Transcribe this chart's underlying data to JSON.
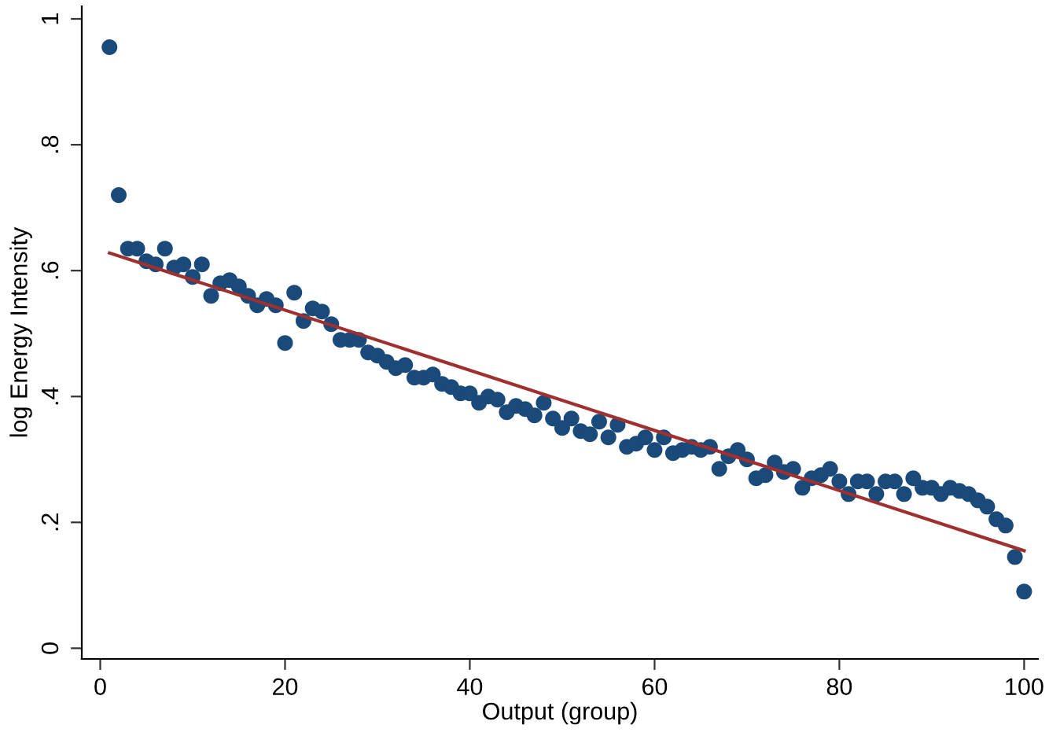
{
  "chart_data": {
    "type": "scatter",
    "xlabel": "Output (group)",
    "ylabel": "log Energy Intensity",
    "xlim": [
      -2,
      101.5
    ],
    "ylim": [
      -0.017,
      1.02
    ],
    "xticks": [
      0,
      20,
      40,
      60,
      80,
      100
    ],
    "yticks": [
      0,
      {
        "value": 0.2,
        "label": ".2"
      },
      {
        "value": 0.4,
        "label": ".4"
      },
      {
        "value": 0.6,
        "label": ".6"
      },
      {
        "value": 0.8,
        "label": ".8"
      },
      1
    ],
    "grid": false,
    "legend": false,
    "series": [
      {
        "marker": "circle",
        "color": "#1a4a7a",
        "x": [
          1,
          2,
          3,
          4,
          5,
          6,
          7,
          8,
          9,
          10,
          11,
          12,
          13,
          14,
          15,
          16,
          17,
          18,
          19,
          20,
          21,
          22,
          23,
          24,
          25,
          26,
          27,
          28,
          29,
          30,
          31,
          32,
          33,
          34,
          35,
          36,
          37,
          38,
          39,
          40,
          41,
          42,
          43,
          44,
          45,
          46,
          47,
          48,
          49,
          50,
          51,
          52,
          53,
          54,
          55,
          56,
          57,
          58,
          59,
          60,
          61,
          62,
          63,
          64,
          65,
          66,
          67,
          68,
          69,
          70,
          71,
          72,
          73,
          74,
          75,
          76,
          77,
          78,
          79,
          80,
          81,
          82,
          83,
          84,
          85,
          86,
          87,
          88,
          89,
          90,
          91,
          92,
          93,
          94,
          95,
          96,
          97,
          98,
          99,
          100
        ],
        "values": [
          0.955,
          0.72,
          0.635,
          0.635,
          0.615,
          0.61,
          0.635,
          0.605,
          0.61,
          0.59,
          0.61,
          0.56,
          0.58,
          0.585,
          0.575,
          0.56,
          0.545,
          0.555,
          0.545,
          0.485,
          0.565,
          0.52,
          0.54,
          0.535,
          0.515,
          0.49,
          0.49,
          0.49,
          0.47,
          0.465,
          0.455,
          0.445,
          0.45,
          0.43,
          0.43,
          0.435,
          0.42,
          0.415,
          0.405,
          0.405,
          0.39,
          0.4,
          0.395,
          0.375,
          0.385,
          0.38,
          0.37,
          0.39,
          0.365,
          0.35,
          0.365,
          0.345,
          0.34,
          0.36,
          0.335,
          0.355,
          0.32,
          0.325,
          0.335,
          0.315,
          0.335,
          0.31,
          0.315,
          0.32,
          0.315,
          0.32,
          0.285,
          0.305,
          0.315,
          0.3,
          0.27,
          0.275,
          0.295,
          0.28,
          0.285,
          0.255,
          0.27,
          0.275,
          0.285,
          0.265,
          0.245,
          0.265,
          0.265,
          0.245,
          0.265,
          0.265,
          0.245,
          0.27,
          0.255,
          0.255,
          0.245,
          0.255,
          0.25,
          0.245,
          0.235,
          0.225,
          0.205,
          0.195,
          0.145,
          0.09
        ]
      },
      {
        "type": "line",
        "marker": "none",
        "color": "#a03030",
        "x": [
          1,
          100
        ],
        "values": [
          0.628,
          0.155
        ]
      }
    ]
  }
}
